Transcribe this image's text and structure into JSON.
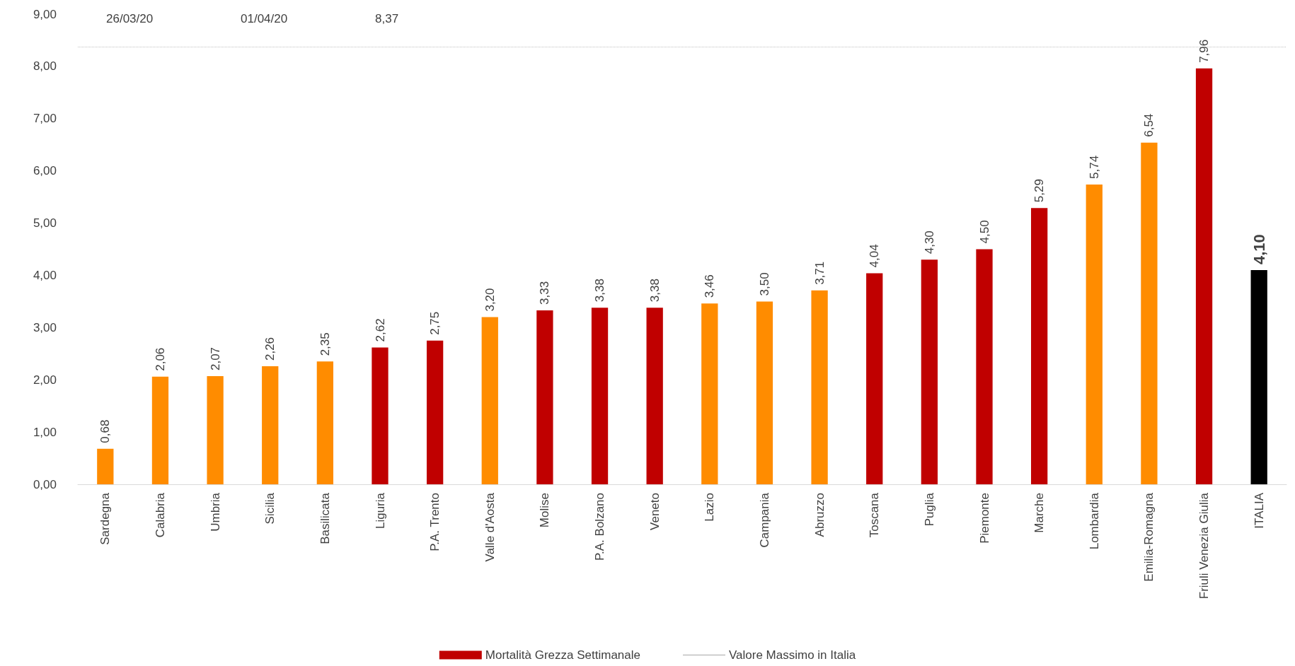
{
  "chart_data": {
    "type": "bar",
    "categories": [
      "Sardegna",
      "Calabria",
      "Umbria",
      "Sicilia",
      "Basilicata",
      "Liguria",
      "P.A. Trento",
      "Valle d'Aosta",
      "Molise",
      "P.A. Bolzano",
      "Veneto",
      "Lazio",
      "Campania",
      "Abruzzo",
      "Toscana",
      "Puglia",
      "Piemonte",
      "Marche",
      "Lombardia",
      "Emilia-Romagna",
      "Friuli Venezia Giulia",
      "ITALIA"
    ],
    "series": [
      {
        "name": "Mortalità Grezza Settimanale",
        "color": "#c00000",
        "values": [
          0.68,
          2.06,
          2.07,
          2.26,
          2.35,
          2.62,
          2.75,
          3.2,
          3.33,
          3.38,
          3.38,
          3.46,
          3.5,
          3.71,
          4.04,
          4.3,
          4.5,
          5.29,
          5.74,
          6.54,
          7.96,
          4.1
        ],
        "colors": [
          "#ff8c00",
          "#ff8c00",
          "#ff8c00",
          "#ff8c00",
          "#ff8c00",
          "#c00000",
          "#c00000",
          "#ff8c00",
          "#c00000",
          "#c00000",
          "#c00000",
          "#ff8c00",
          "#ff8c00",
          "#ff8c00",
          "#c00000",
          "#c00000",
          "#c00000",
          "#c00000",
          "#ff8c00",
          "#ff8c00",
          "#c00000",
          "#000000"
        ],
        "value_labels": [
          "0,68",
          "2,06",
          "2,07",
          "2,26",
          "2,35",
          "2,62",
          "2,75",
          "3,20",
          "3,33",
          "3,38",
          "3,38",
          "3,46",
          "3,50",
          "3,71",
          "4,04",
          "4,30",
          "4,50",
          "5,29",
          "5,74",
          "6,54",
          "7,96",
          "4,10"
        ]
      }
    ],
    "ylim": [
      0,
      9
    ],
    "yticks": [
      {
        "value": 0,
        "label": "0,00"
      },
      {
        "value": 1,
        "label": "1,00"
      },
      {
        "value": 2,
        "label": "2,00"
      },
      {
        "value": 3,
        "label": "3,00"
      },
      {
        "value": 4,
        "label": "4,00"
      },
      {
        "value": 5,
        "label": "5,00"
      },
      {
        "value": 6,
        "label": "6,00"
      },
      {
        "value": 7,
        "label": "7,00"
      },
      {
        "value": 8,
        "label": "8,00"
      },
      {
        "value": 9,
        "label": "9,00"
      }
    ],
    "ref_lines": [
      {
        "axis": "y",
        "value": 8.37,
        "label": "Valore Massimo in Italia",
        "color": "#bfbfbf",
        "line_style": "dotted"
      }
    ],
    "annotations": [
      "26/03/20",
      "01/04/20",
      "8,37"
    ],
    "grid": false,
    "legend": "bottom"
  }
}
